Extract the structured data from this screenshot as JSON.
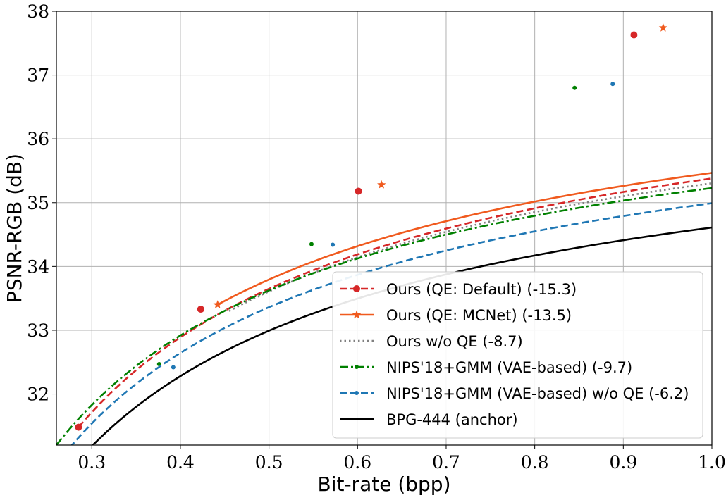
{
  "chart_data": {
    "type": "line",
    "title": "",
    "xlabel": "Bit-rate (bpp)",
    "ylabel": "PSNR-RGB (dB)",
    "xlim": [
      0.26,
      1.0
    ],
    "ylim": [
      31.2,
      38.0
    ],
    "xticks": [
      0.3,
      0.4,
      0.5,
      0.6,
      0.7,
      0.8,
      0.9,
      1.0
    ],
    "xtick_labels": [
      "0.3",
      "0.4",
      "0.5",
      "0.6",
      "0.7",
      "0.8",
      "0.9",
      "1.0"
    ],
    "yticks": [
      32,
      33,
      34,
      35,
      36,
      37,
      38
    ],
    "ytick_labels": [
      "32",
      "33",
      "34",
      "35",
      "36",
      "37",
      "38"
    ],
    "grid": true,
    "legend_position": "bottom-right",
    "series": [
      {
        "name": "Ours (QE: Default) (-15.3)",
        "color": "#d62728",
        "line_style": "dashed",
        "marker": "circle",
        "curve": {
          "x_min": 0.285,
          "x_max": 1.0,
          "a": 38.15,
          "b": 31.48,
          "p": 0.7
        },
        "markers": [
          {
            "x": 0.285,
            "y": 31.48
          },
          {
            "x": 0.423,
            "y": 33.33
          },
          {
            "x": 0.601,
            "y": 35.18
          },
          {
            "x": 0.912,
            "y": 37.63
          }
        ]
      },
      {
        "name": "Ours (QE: MCNet) (-13.5)",
        "color": "#f05a1e",
        "line_style": "solid",
        "marker": "star",
        "curve": {
          "x_min": 0.442,
          "x_max": 1.0,
          "a": 38.05,
          "b": 33.4,
          "p": 0.72
        },
        "markers": [
          {
            "x": 0.442,
            "y": 33.4
          },
          {
            "x": 0.627,
            "y": 35.28
          },
          {
            "x": 0.945,
            "y": 37.74
          }
        ]
      },
      {
        "name": "Ours w/o QE (-8.7)",
        "color": "#808080",
        "line_style": "dotted",
        "marker": "none",
        "curve": {
          "x_min": 0.455,
          "x_max": 1.0,
          "a": 37.75,
          "b": 33.3,
          "p": 0.76
        },
        "markers": []
      },
      {
        "name": "NIPS'18+GMM (VAE-based) (-9.7)",
        "color": "#008000",
        "line_style": "dashdot",
        "marker": "dot",
        "curve": {
          "x_min": 0.26,
          "x_max": 1.0,
          "a": 37.8,
          "b": 31.2,
          "p": 0.7
        },
        "markers": [
          {
            "x": 0.376,
            "y": 32.47
          },
          {
            "x": 0.548,
            "y": 34.35
          },
          {
            "x": 0.845,
            "y": 36.8
          }
        ]
      },
      {
        "name": "NIPS'18+GMM (VAE-based) w/o QE (-6.2)",
        "color": "#1f77b4",
        "line_style": "dashed",
        "marker": "dot",
        "curve": {
          "x_min": 0.26,
          "x_max": 1.0,
          "a": 37.6,
          "b": 30.9,
          "p": 0.7
        },
        "markers": [
          {
            "x": 0.392,
            "y": 32.42
          },
          {
            "x": 0.572,
            "y": 34.34
          },
          {
            "x": 0.888,
            "y": 36.86
          }
        ]
      },
      {
        "name": "BPG-444 (anchor)",
        "color": "#000000",
        "line_style": "solid",
        "marker": "none",
        "curve": {
          "x_min": 0.26,
          "x_max": 1.0,
          "a": 37.2,
          "b": 30.55,
          "p": 0.7
        },
        "markers": []
      }
    ]
  }
}
